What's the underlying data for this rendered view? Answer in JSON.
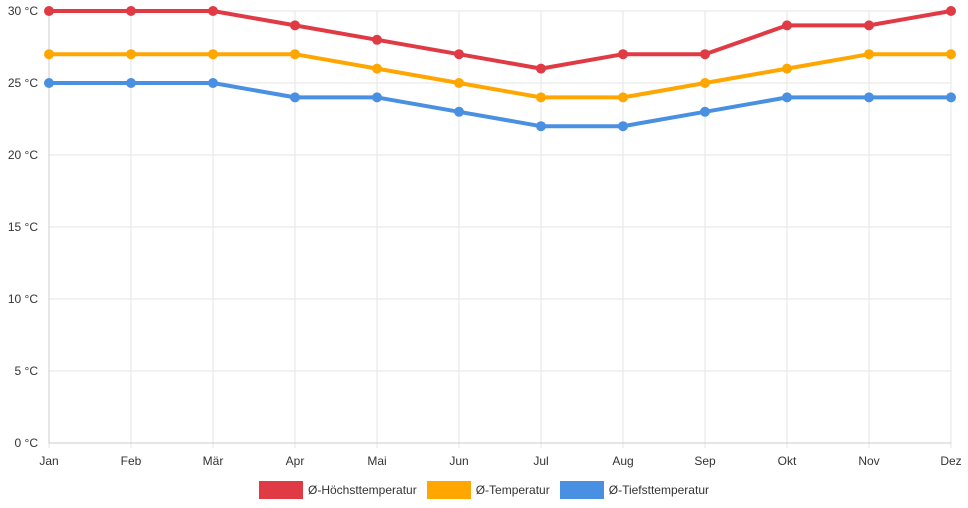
{
  "chart_data": {
    "type": "line",
    "categories": [
      "Jan",
      "Feb",
      "Mär",
      "Apr",
      "Mai",
      "Jun",
      "Jul",
      "Aug",
      "Sep",
      "Okt",
      "Nov",
      "Dez"
    ],
    "ylim": [
      0,
      30
    ],
    "yticks": [
      0,
      5,
      10,
      15,
      20,
      25,
      30
    ],
    "ytick_labels": [
      "0 °C",
      "5 °C",
      "10 °C",
      "15 °C",
      "20 °C",
      "25 °C",
      "30 °C"
    ],
    "grid": true,
    "legend_position": "bottom",
    "series": [
      {
        "name": "Ø-Höchsttemperatur",
        "color": "#e03a45",
        "values": [
          30,
          30,
          30,
          29,
          28,
          27,
          26,
          27,
          27,
          29,
          29,
          30
        ]
      },
      {
        "name": "Ø-Temperatur",
        "color": "#ffa600",
        "values": [
          27,
          27,
          27,
          27,
          26,
          25,
          24,
          24,
          25,
          26,
          27,
          27
        ]
      },
      {
        "name": "Ø-Tiefsttemperatur",
        "color": "#4a90e2",
        "values": [
          25,
          25,
          25,
          24,
          24,
          23,
          22,
          22,
          23,
          24,
          24,
          24
        ]
      }
    ]
  }
}
